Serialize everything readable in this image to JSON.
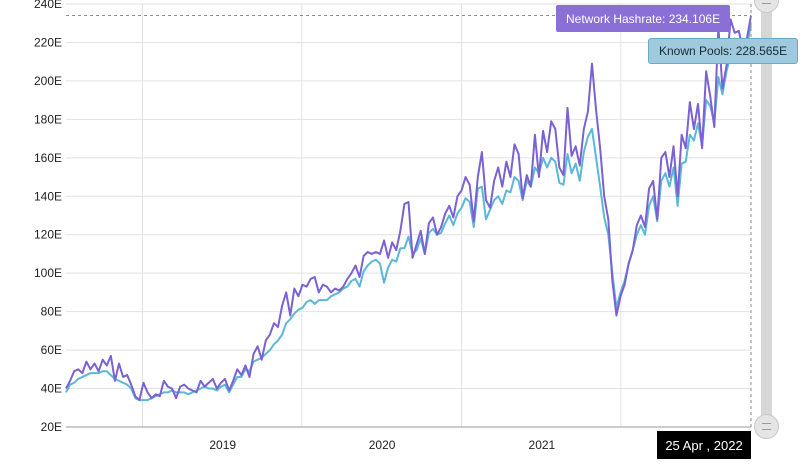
{
  "chart_data": {
    "type": "line",
    "y_axis": {
      "ticks": [
        "20E",
        "40E",
        "60E",
        "80E",
        "100E",
        "120E",
        "140E",
        "160E",
        "180E",
        "200E",
        "220E",
        "240E"
      ],
      "ylim": [
        20,
        240
      ]
    },
    "x_axis": {
      "ticks": [
        "2019",
        "2020",
        "2021"
      ],
      "range": [
        "2018-01-07",
        "2022-04-25"
      ]
    },
    "grid": true,
    "series": [
      {
        "name": "Network Hashrate",
        "color": "#7b61d1",
        "values": [
          40,
          44,
          49,
          50,
          48,
          54,
          50,
          53,
          49,
          55,
          52,
          57,
          44,
          53,
          46,
          47,
          42,
          36,
          34,
          43,
          38,
          35,
          37,
          36,
          44,
          41,
          40,
          35,
          41,
          42,
          40,
          39,
          38,
          44,
          41,
          43,
          45,
          40,
          43,
          45,
          39,
          44,
          50,
          47,
          52,
          46,
          58,
          62,
          55,
          65,
          68,
          74,
          72,
          83,
          90,
          78,
          92,
          88,
          94,
          93,
          97,
          98,
          90,
          94,
          93,
          90,
          92,
          91,
          93,
          97,
          100,
          104,
          98,
          109,
          111,
          110,
          111,
          110,
          117,
          108,
          116,
          112,
          122,
          136,
          137,
          108,
          115,
          122,
          110,
          126,
          129,
          120,
          124,
          131,
          135,
          129,
          140,
          143,
          150,
          146,
          127,
          150,
          163,
          138,
          134,
          148,
          155,
          145,
          158,
          150,
          167,
          162,
          139,
          151,
          145,
          172,
          150,
          174,
          163,
          179,
          175,
          155,
          151,
          186,
          161,
          166,
          156,
          175,
          184,
          209,
          185,
          165,
          140,
          128,
          96,
          78,
          88,
          94,
          105,
          112,
          125,
          130,
          124,
          144,
          148,
          128,
          160,
          163,
          150,
          166,
          140,
          172,
          165,
          189,
          175,
          188,
          165,
          205,
          192,
          176,
          228,
          196,
          208,
          232,
          225,
          226,
          217,
          222,
          234
        ],
        "last_label": "Network Hashrate: 234.106E"
      },
      {
        "name": "Known Pools",
        "color": "#5bb8d8",
        "values": [
          38,
          42,
          43,
          45,
          46,
          47,
          48,
          48,
          48,
          49,
          49,
          47,
          45,
          44,
          43,
          42,
          40,
          35,
          34,
          34,
          34,
          35,
          36,
          37,
          38,
          38,
          39,
          38,
          38,
          38,
          37,
          38,
          39,
          40,
          41,
          40,
          40,
          39,
          41,
          42,
          38,
          42,
          46,
          46,
          50,
          49,
          54,
          55,
          56,
          58,
          60,
          63,
          65,
          68,
          74,
          76,
          79,
          81,
          82,
          85,
          86,
          84,
          86,
          86,
          86,
          88,
          89,
          90,
          92,
          93,
          96,
          97,
          93,
          101,
          104,
          106,
          107,
          105,
          95,
          103,
          107,
          106,
          113,
          113,
          119,
          110,
          112,
          118,
          110,
          121,
          123,
          120,
          121,
          126,
          130,
          125,
          131,
          134,
          139,
          137,
          124,
          144,
          145,
          128,
          133,
          138,
          140,
          136,
          143,
          142,
          150,
          148,
          138,
          148,
          145,
          155,
          152,
          160,
          155,
          160,
          158,
          147,
          146,
          162,
          152,
          157,
          148,
          163,
          171,
          175,
          160,
          145,
          129,
          120,
          100,
          82,
          90,
          96,
          105,
          112,
          120,
          125,
          120,
          135,
          140,
          127,
          148,
          152,
          145,
          155,
          135,
          157,
          158,
          172,
          169,
          178,
          166,
          190,
          187,
          178,
          202,
          193,
          205,
          213,
          222,
          212,
          210,
          218,
          229
        ],
        "last_label": "Known Pools: 228.565E"
      }
    ],
    "selected_date": "25 Apr , 2022"
  },
  "scrollbar": {
    "handle_icon": "grip-lines-icon"
  }
}
